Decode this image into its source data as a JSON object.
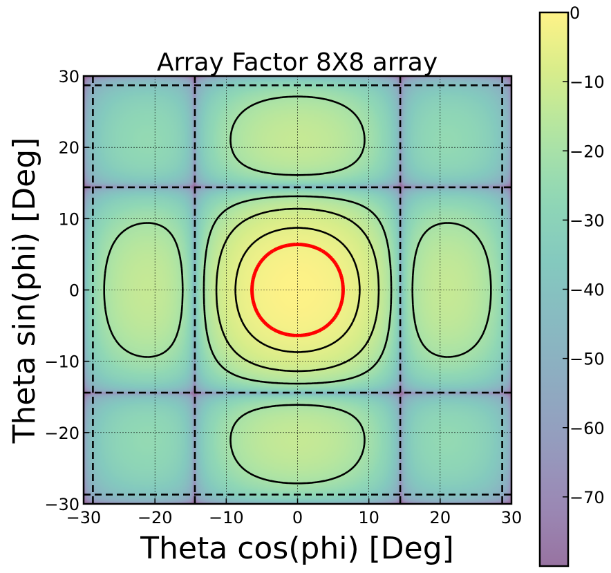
{
  "chart_data": {
    "type": "heatmap",
    "title": "Array Factor 8X8 array",
    "xlabel": "Theta cos(phi) [Deg]",
    "ylabel": "Theta sin(phi) [Deg]",
    "xlim": [
      -30,
      30
    ],
    "ylim": [
      -30,
      30
    ],
    "x_ticks": [
      "−30",
      "−20",
      "−10",
      "0",
      "10",
      "20",
      "30"
    ],
    "y_ticks": [
      "−30",
      "−20",
      "−10",
      "0",
      "10",
      "20",
      "30"
    ],
    "x_tick_values": [
      -30,
      -20,
      -10,
      0,
      10,
      20,
      30
    ],
    "y_tick_values": [
      -30,
      -20,
      -10,
      0,
      10,
      20,
      30
    ],
    "grid": true,
    "colorbar": {
      "range": [
        -80,
        0
      ],
      "ticks": [
        "0",
        "−10",
        "−20",
        "−30",
        "−40",
        "−50",
        "−60",
        "−70"
      ],
      "tick_values": [
        0,
        -10,
        -20,
        -30,
        -40,
        -50,
        -60,
        -70
      ],
      "colormap": "viridis"
    },
    "elements_per_side": 8,
    "null_positions_deg": [
      -28.7,
      -14.4,
      14.4,
      28.7
    ],
    "contour_levels_db": [
      -3,
      -6,
      -12,
      -20
    ],
    "highlight_contour": {
      "level_db": -3,
      "color": "#ff0000",
      "style": "dashed"
    },
    "contour_color": "#000000"
  }
}
